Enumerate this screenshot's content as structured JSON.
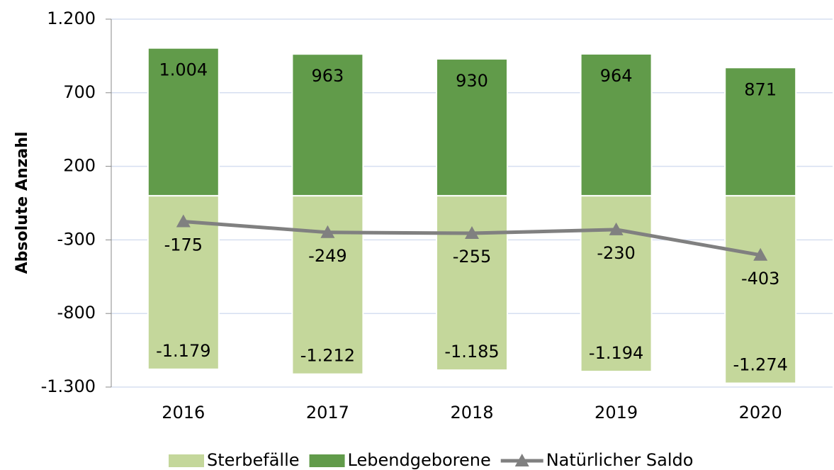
{
  "chart_data": {
    "type": "bar",
    "y_label": "Absolute Anzahl",
    "categories": [
      "2016",
      "2017",
      "2018",
      "2019",
      "2020"
    ],
    "series": [
      {
        "name": "Sterbefälle",
        "color": "#c4d79b",
        "type": "bar",
        "values": [
          -1179,
          -1212,
          -1185,
          -1194,
          -1274
        ],
        "value_labels": [
          "-1.179",
          "-1.212",
          "-1.185",
          "-1.194",
          "-1.274"
        ]
      },
      {
        "name": "Lebendgeborene",
        "color": "#619b4a",
        "type": "bar",
        "values": [
          1004,
          963,
          930,
          964,
          871
        ],
        "value_labels": [
          "1.004",
          "963",
          "930",
          "964",
          "871"
        ]
      },
      {
        "name": "Natürlicher Saldo",
        "color": "#808080",
        "type": "line",
        "values": [
          -175,
          -249,
          -255,
          -230,
          -403
        ]
      }
    ],
    "ylim": [
      -1300,
      1200
    ],
    "yticks": [
      {
        "value": 1200,
        "label": "1.200"
      },
      700,
      200,
      -300,
      -800,
      {
        "value": -1300,
        "label": "-1.300"
      }
    ],
    "grid": true,
    "legend": "bottom"
  }
}
